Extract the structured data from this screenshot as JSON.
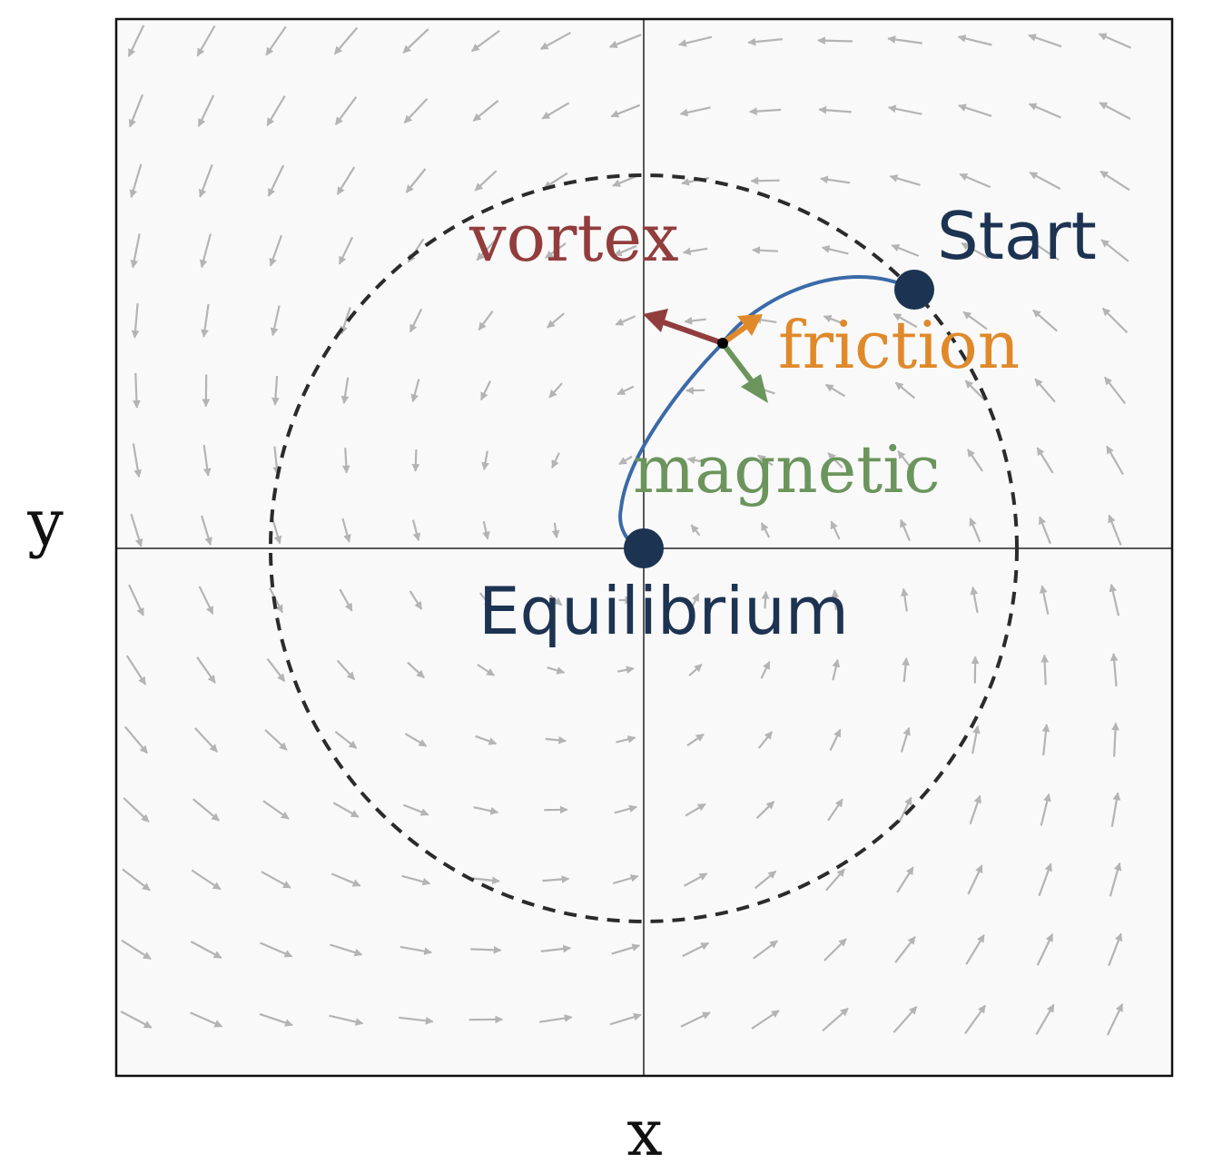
{
  "axes": {
    "x_label": "x",
    "y_label": "y"
  },
  "labels": {
    "start": "Start",
    "equilibrium": "Equilibrium",
    "vortex": "vortex",
    "friction": "friction",
    "magnetic": "magnetic"
  },
  "colors": {
    "background": "#f9f9f9",
    "frame": "#111111",
    "field_arrows": "#b4b4b4",
    "circle": "#2b2b2b",
    "trajectory": "#3a6aa8",
    "points": "#1d3352",
    "vortex": "#923d3d",
    "friction": "#e0892b",
    "magnetic": "#6b955c"
  }
}
